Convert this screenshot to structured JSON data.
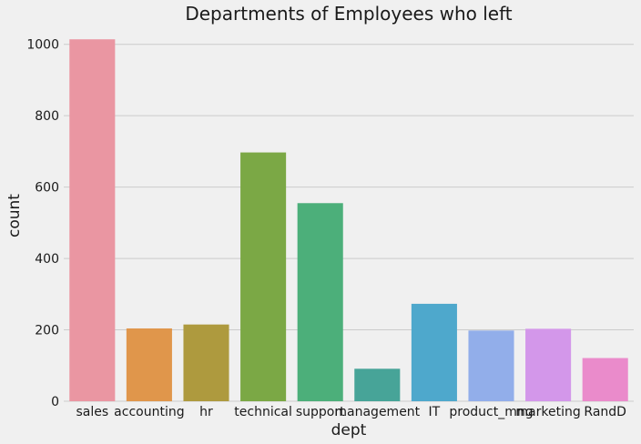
{
  "chart_data": {
    "type": "bar",
    "title": "Departments of Employees who left",
    "xlabel": "dept",
    "ylabel": "count",
    "categories": [
      "sales",
      "accounting",
      "hr",
      "technical",
      "support",
      "management",
      "IT",
      "product_mng",
      "marketing",
      "RandD"
    ],
    "values": [
      1014,
      204,
      215,
      697,
      555,
      91,
      273,
      198,
      203,
      121
    ],
    "colors": [
      "#ea96a2",
      "#e0964b",
      "#ae9a3e",
      "#7ba845",
      "#4caf7a",
      "#47a498",
      "#4ea8cc",
      "#92aeea",
      "#d397ea",
      "#ea8bcb"
    ],
    "ylim": [
      0,
      1040
    ],
    "yticks": [
      0,
      200,
      400,
      600,
      800,
      1000
    ],
    "grid": true,
    "legend": "none"
  }
}
